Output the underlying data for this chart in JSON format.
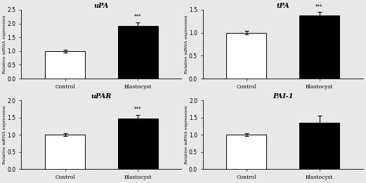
{
  "subplots": [
    {
      "title": "uPA",
      "categories": [
        "Control",
        "Blastocyst"
      ],
      "values": [
        1.0,
        1.9
      ],
      "errors": [
        0.05,
        0.15
      ],
      "colors": [
        "white",
        "black"
      ],
      "ylim": [
        0,
        2.5
      ],
      "yticks": [
        0.0,
        0.5,
        1.0,
        1.5,
        2.0,
        2.5
      ],
      "significance": "***",
      "sig_on_bar": 1
    },
    {
      "title": "tPA",
      "categories": [
        "Control",
        "Blastocyst"
      ],
      "values": [
        1.0,
        1.38
      ],
      "errors": [
        0.04,
        0.07
      ],
      "colors": [
        "white",
        "black"
      ],
      "ylim": [
        0,
        1.5
      ],
      "yticks": [
        0.0,
        0.5,
        1.0,
        1.5
      ],
      "significance": "***",
      "sig_on_bar": 1
    },
    {
      "title": "uPAR",
      "categories": [
        "Control",
        "Blastocyst"
      ],
      "values": [
        1.0,
        1.48
      ],
      "errors": [
        0.04,
        0.1
      ],
      "colors": [
        "white",
        "black"
      ],
      "ylim": [
        0,
        2.0
      ],
      "yticks": [
        0.0,
        0.5,
        1.0,
        1.5,
        2.0
      ],
      "significance": "***",
      "sig_on_bar": 1
    },
    {
      "title": "PAI-1",
      "categories": [
        "Control",
        "Blastocyst"
      ],
      "values": [
        1.0,
        1.35
      ],
      "errors": [
        0.04,
        0.2
      ],
      "colors": [
        "white",
        "black"
      ],
      "ylim": [
        0,
        2.0
      ],
      "yticks": [
        0.0,
        0.5,
        1.0,
        1.5,
        2.0
      ],
      "significance": null,
      "sig_on_bar": 1
    }
  ],
  "ylabel": "Relative mRNA expression",
  "bar_width": 0.55,
  "edge_color": "black",
  "background_color": "#e8e8e8",
  "fig_facecolor": "#e8e8e8"
}
